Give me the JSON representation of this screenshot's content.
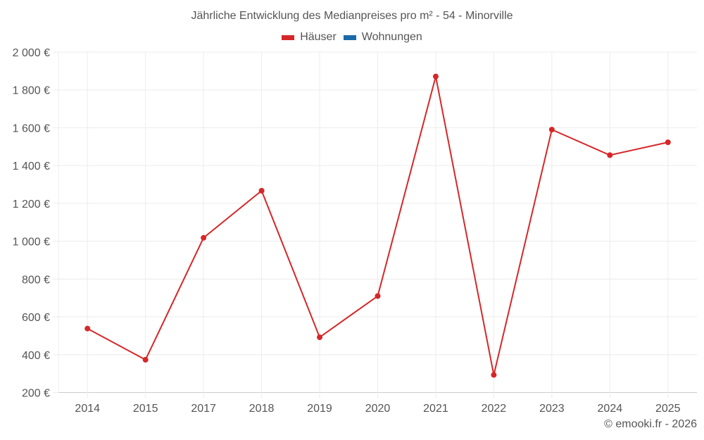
{
  "chart": {
    "title": "Jährliche Entwicklung des Medianpreises pro m² - 54 - Minorville",
    "credit": "© emooki.fr - 2026",
    "legend": [
      {
        "label": "Häuser",
        "color": "#d62728"
      },
      {
        "label": "Wohnungen",
        "color": "#1a6aa8"
      }
    ]
  },
  "chart_data": {
    "type": "line",
    "title": "Jährliche Entwicklung des Medianpreises pro m² - 54 - Minorville",
    "xlabel": "",
    "ylabel": "",
    "categories": [
      "2014",
      "2015",
      "2017",
      "2018",
      "2019",
      "2020",
      "2021",
      "2022",
      "2023",
      "2024",
      "2025"
    ],
    "series": [
      {
        "name": "Häuser",
        "color": "#d62728",
        "values": [
          538,
          373,
          1018,
          1267,
          492,
          710,
          1871,
          293,
          1590,
          1455,
          1523
        ]
      },
      {
        "name": "Wohnungen",
        "color": "#1a6aa8",
        "values": []
      }
    ],
    "ylim": [
      200,
      2000
    ],
    "yticks": [
      200,
      400,
      600,
      800,
      1000,
      1200,
      1400,
      1600,
      1800,
      2000
    ],
    "ytick_labels": [
      "200 €",
      "400 €",
      "600 €",
      "800 €",
      "1 000 €",
      "1 200 €",
      "1 400 €",
      "1 600 €",
      "1 800 €",
      "2 000 €"
    ],
    "grid": true,
    "legend_position": "top"
  }
}
